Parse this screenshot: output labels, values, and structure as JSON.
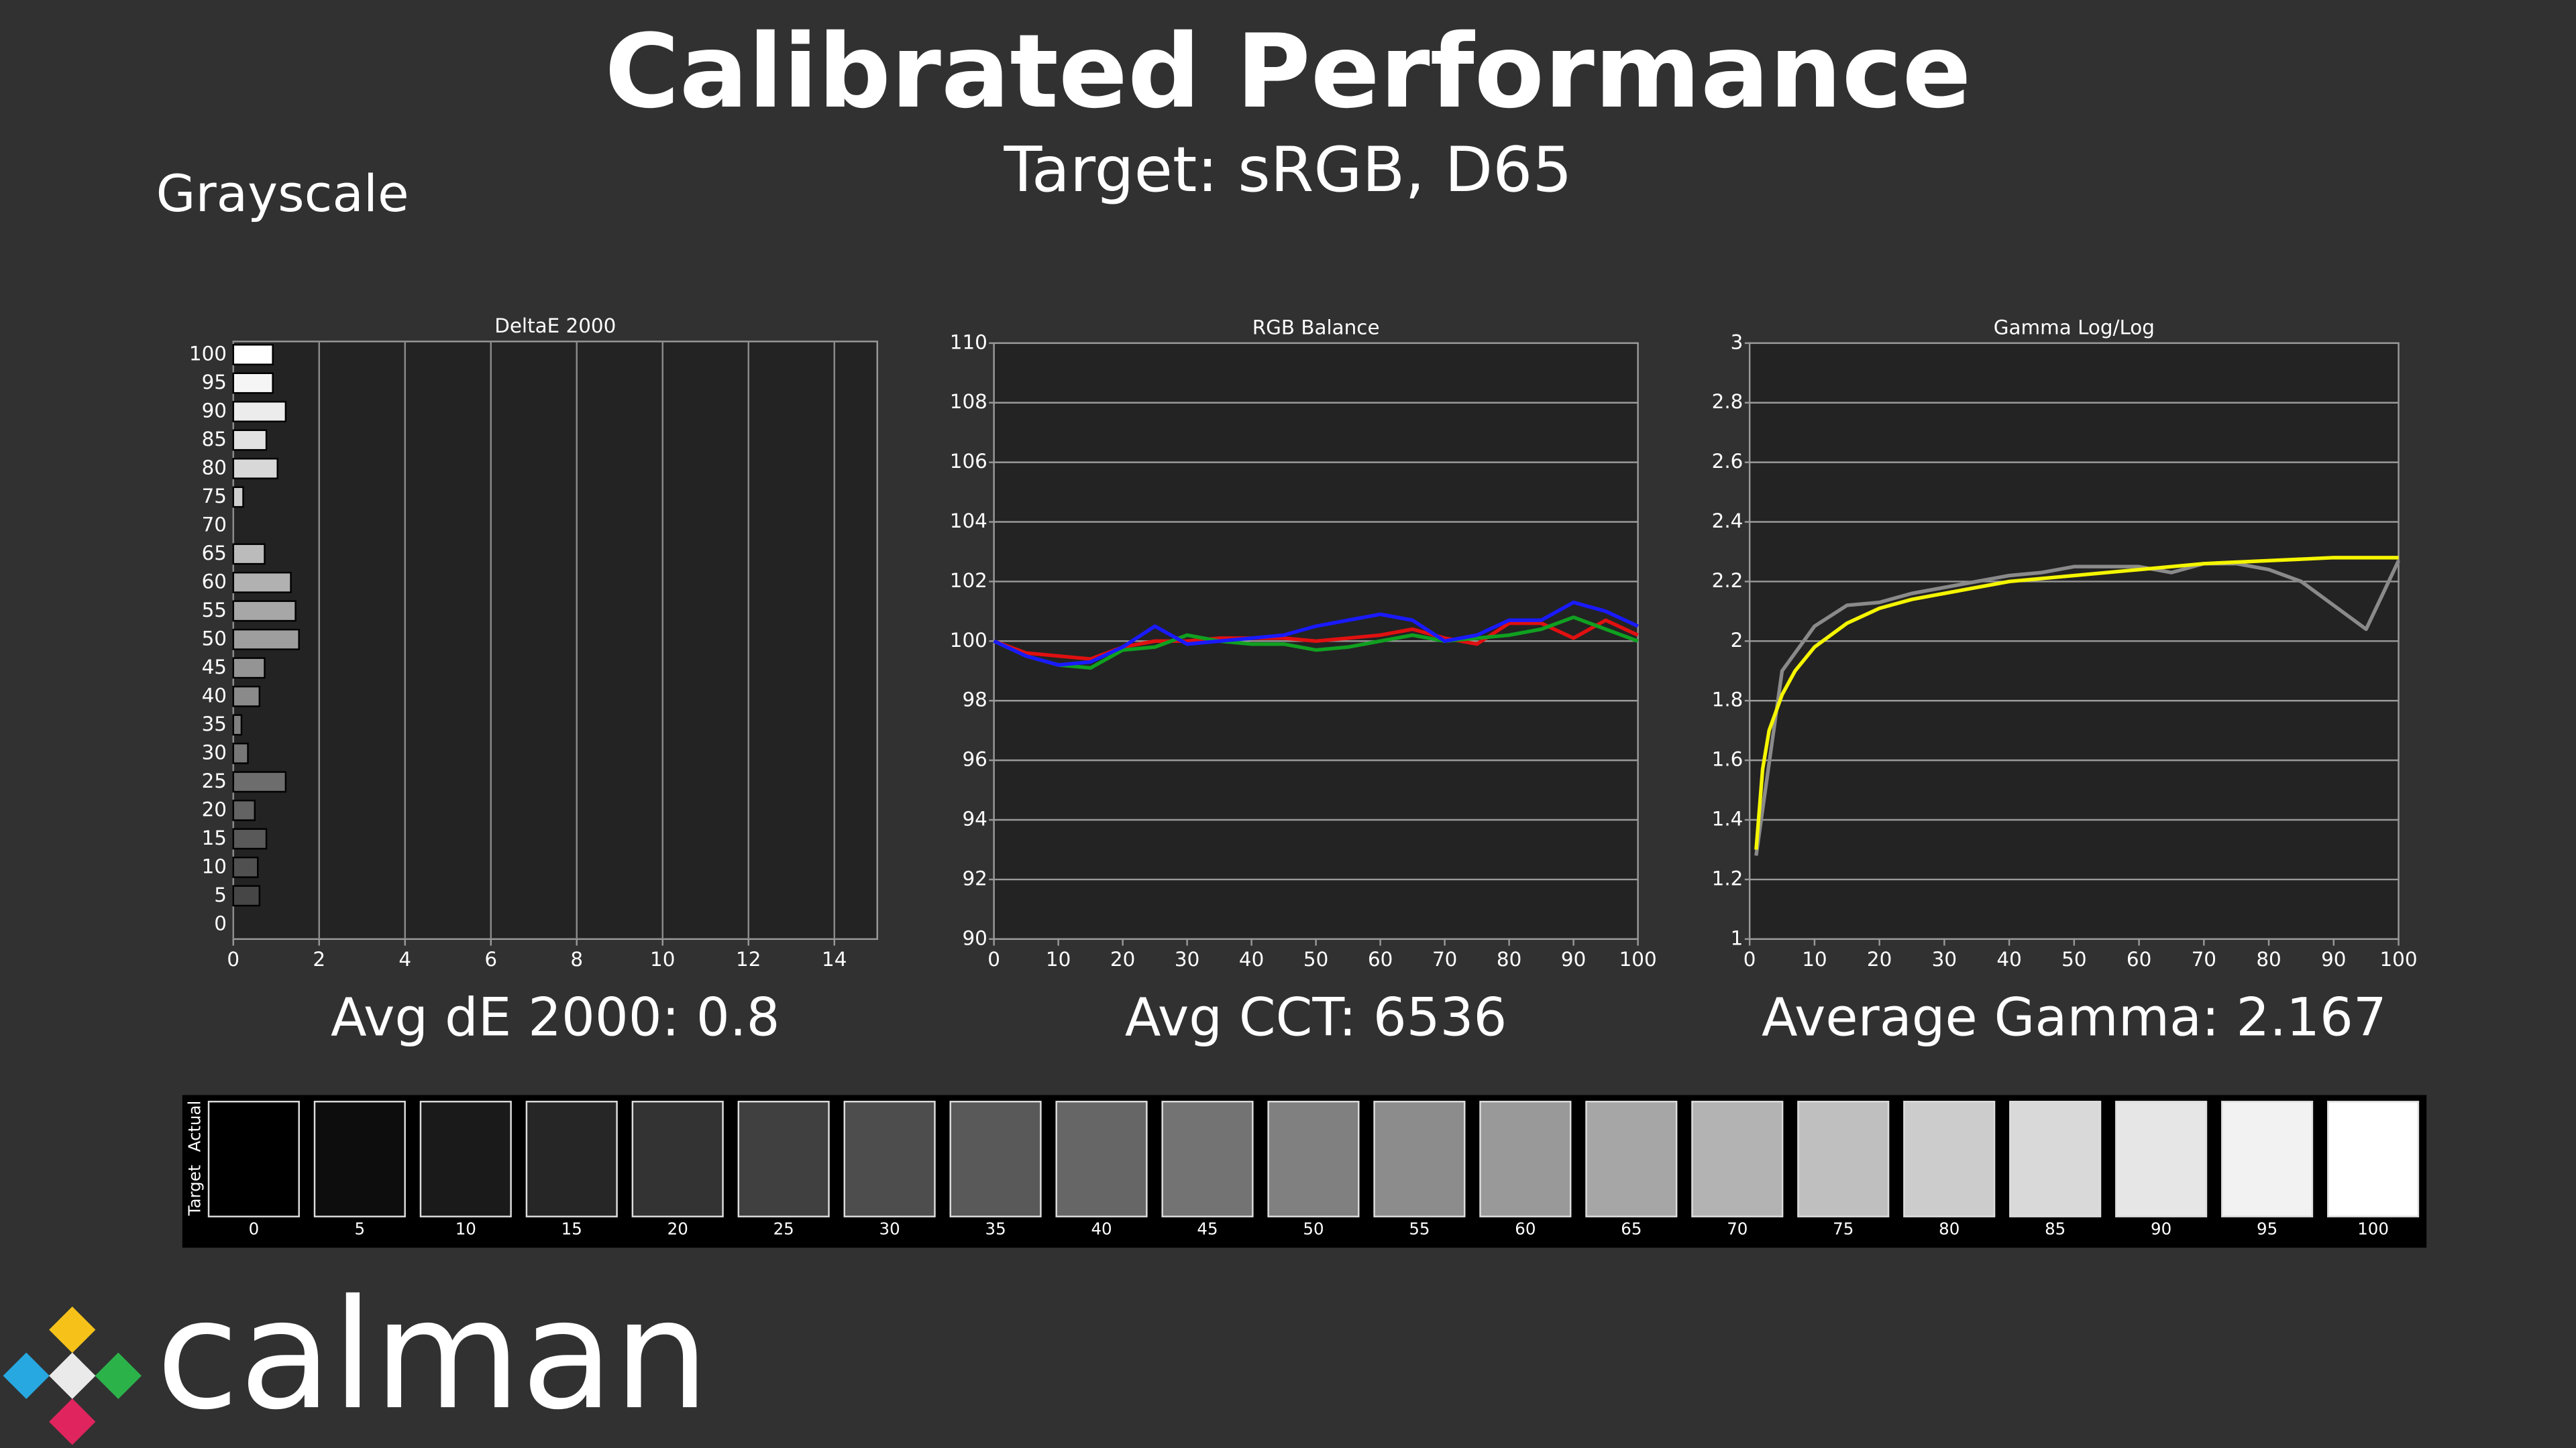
{
  "title": "Calibrated Performance",
  "subtitle": "Target: sRGB, D65",
  "section": "Grayscale",
  "brand": "calman",
  "chart_data": [
    {
      "type": "bar",
      "horizontal": true,
      "title": "DeltaE 2000",
      "annotation": "Avg dE 2000: 0.8",
      "categories": [
        "0",
        "5",
        "10",
        "15",
        "20",
        "25",
        "30",
        "35",
        "40",
        "45",
        "50",
        "55",
        "60",
        "65",
        "70",
        "75",
        "80",
        "85",
        "90",
        "95",
        "100"
      ],
      "values": [
        0,
        0.61,
        0.57,
        0.77,
        0.5,
        1.22,
        0.34,
        0.19,
        0.61,
        0.73,
        1.53,
        1.45,
        1.34,
        0.73,
        0,
        0.23,
        1.03,
        0.77,
        1.22,
        0.92,
        0.92
      ],
      "xlim": [
        0,
        15
      ],
      "xticks": [
        0,
        2,
        4,
        6,
        8,
        10,
        12,
        14
      ],
      "grid": "x"
    },
    {
      "type": "line",
      "title": "RGB Balance",
      "annotation": "Avg CCT: 6536",
      "x": [
        0,
        5,
        10,
        15,
        20,
        25,
        30,
        35,
        40,
        45,
        50,
        55,
        60,
        65,
        70,
        75,
        80,
        85,
        90,
        95,
        100
      ],
      "series": [
        {
          "color": "#e01010",
          "values": [
            100,
            99.6,
            99.5,
            99.4,
            99.8,
            100.0,
            100.0,
            100.1,
            100.1,
            100.1,
            100.0,
            100.1,
            100.2,
            100.4,
            100.1,
            99.9,
            100.6,
            100.6,
            100.1,
            100.7,
            100.2
          ]
        },
        {
          "color": "#10a020",
          "values": [
            100,
            99.5,
            99.2,
            99.1,
            99.7,
            99.8,
            100.2,
            100.0,
            99.9,
            99.9,
            99.7,
            99.8,
            100.0,
            100.2,
            100.0,
            100.1,
            100.2,
            100.4,
            100.8,
            100.4,
            100.0
          ]
        },
        {
          "color": "#1a1aff",
          "values": [
            100,
            99.5,
            99.2,
            99.3,
            99.8,
            100.5,
            99.9,
            100.0,
            100.1,
            100.2,
            100.5,
            100.7,
            100.9,
            100.7,
            100.0,
            100.2,
            100.7,
            100.7,
            101.3,
            101.0,
            100.5
          ]
        }
      ],
      "xlim": [
        0,
        100
      ],
      "xticks": [
        0,
        10,
        20,
        30,
        40,
        50,
        60,
        70,
        80,
        90,
        100
      ],
      "ylim": [
        90,
        110
      ],
      "yticks": [
        90,
        92,
        94,
        96,
        98,
        100,
        102,
        104,
        106,
        108,
        110
      ],
      "grid": "y"
    },
    {
      "type": "line",
      "title": "Gamma Log/Log",
      "annotation": "Average Gamma: 2.167",
      "series": [
        {
          "color": "#8a8a8a",
          "x": [
            1,
            5,
            10,
            15,
            20,
            25,
            30,
            35,
            40,
            45,
            50,
            55,
            60,
            65,
            70,
            75,
            80,
            85,
            90,
            95,
            100
          ],
          "values": [
            1.28,
            1.9,
            2.05,
            2.12,
            2.13,
            2.16,
            2.18,
            2.2,
            2.22,
            2.23,
            2.25,
            2.25,
            2.25,
            2.23,
            2.26,
            2.26,
            2.24,
            2.2,
            2.12,
            2.04,
            2.27
          ]
        },
        {
          "color": "#f5f500",
          "x": [
            1,
            2,
            3,
            5,
            7,
            10,
            15,
            20,
            25,
            30,
            40,
            50,
            60,
            70,
            80,
            90,
            100
          ],
          "values": [
            1.3,
            1.57,
            1.7,
            1.82,
            1.9,
            1.98,
            2.06,
            2.11,
            2.14,
            2.16,
            2.2,
            2.22,
            2.24,
            2.26,
            2.27,
            2.28,
            2.28
          ]
        }
      ],
      "xlim": [
        0,
        100
      ],
      "xticks": [
        0,
        10,
        20,
        30,
        40,
        50,
        60,
        70,
        80,
        90,
        100
      ],
      "ylim": [
        1,
        3
      ],
      "yticks": [
        1,
        1.2,
        1.4,
        1.6,
        1.8,
        2,
        2.2,
        2.4,
        2.6,
        2.8,
        3
      ],
      "grid": "y"
    }
  ],
  "swatches": {
    "row_labels": [
      "Actual",
      "Target"
    ],
    "levels": [
      0,
      5,
      10,
      15,
      20,
      25,
      30,
      35,
      40,
      45,
      50,
      55,
      60,
      65,
      70,
      75,
      80,
      85,
      90,
      95,
      100
    ]
  }
}
